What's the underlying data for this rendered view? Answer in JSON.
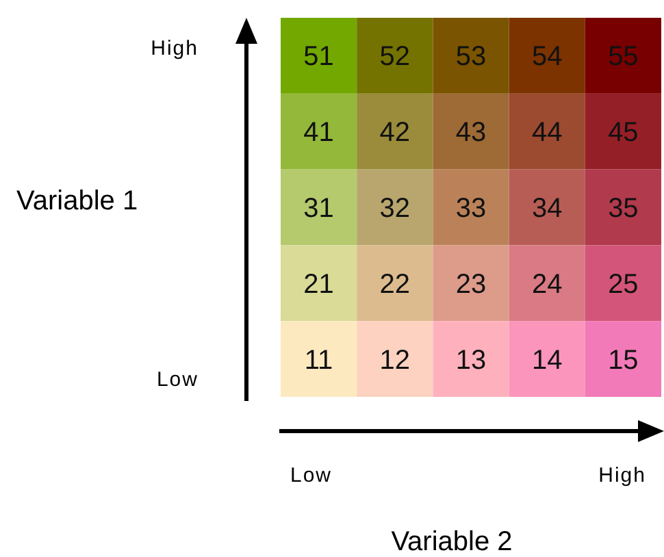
{
  "chart_data": {
    "type": "heatmap",
    "xlabel": "Variable 2",
    "ylabel": "Variable 1",
    "categories": [
      "Low",
      null,
      null,
      null,
      "High"
    ],
    "y_categories": [
      "High",
      null,
      null,
      null,
      "Low"
    ],
    "cells": [
      [
        51,
        52,
        53,
        54,
        55
      ],
      [
        41,
        42,
        43,
        44,
        45
      ],
      [
        31,
        32,
        33,
        34,
        35
      ],
      [
        21,
        22,
        23,
        24,
        25
      ],
      [
        11,
        12,
        13,
        14,
        15
      ]
    ],
    "colors": [
      [
        "#72a800",
        "#757300",
        "#7a5400",
        "#7c3300",
        "#780000"
      ],
      [
        "#93b83a",
        "#9a8c3a",
        "#9e6a35",
        "#9c4a30",
        "#951f27"
      ],
      [
        "#b5c96d",
        "#b8a66e",
        "#bb8259",
        "#b85d56",
        "#b23a4d"
      ],
      [
        "#d9db97",
        "#dcbb8f",
        "#dd9b8a",
        "#d97a84",
        "#d3557a"
      ],
      [
        "#fde9c0",
        "#fed2c0",
        "#feb1bd",
        "#fb95bb",
        "#f27ab8"
      ]
    ],
    "data_labels": true
  }
}
